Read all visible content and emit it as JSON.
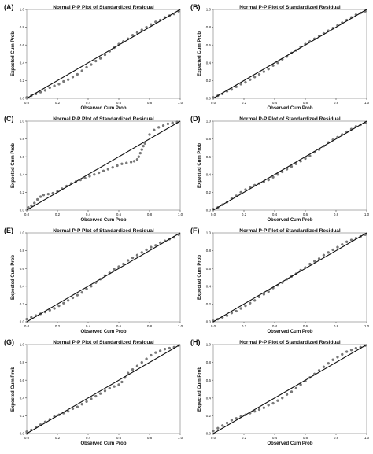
{
  "chart_data": [
    {
      "panel": "(A)",
      "type": "scatter",
      "title": "Normal P-P Plot of Standardized Residual",
      "xlabel": "Observed Cum Prob",
      "ylabel": "Expected Cum Prob",
      "xlim": [
        0,
        1
      ],
      "ylim": [
        0,
        1
      ],
      "xticks": [
        "0.0",
        "0.2",
        "0.4",
        "0.6",
        "0.8",
        "1.0"
      ],
      "yticks": [
        "0.0",
        "0.2",
        "0.4",
        "0.6",
        "0.8",
        "1.0"
      ],
      "reference_line": [
        [
          0,
          0
        ],
        [
          1,
          1
        ]
      ],
      "points": [
        [
          0.0,
          0.01
        ],
        [
          0.03,
          0.03
        ],
        [
          0.06,
          0.05
        ],
        [
          0.09,
          0.07
        ],
        [
          0.12,
          0.09
        ],
        [
          0.15,
          0.12
        ],
        [
          0.18,
          0.14
        ],
        [
          0.21,
          0.16
        ],
        [
          0.24,
          0.19
        ],
        [
          0.27,
          0.21
        ],
        [
          0.3,
          0.24
        ],
        [
          0.33,
          0.27
        ],
        [
          0.36,
          0.31
        ],
        [
          0.39,
          0.35
        ],
        [
          0.42,
          0.38
        ],
        [
          0.45,
          0.42
        ],
        [
          0.48,
          0.45
        ],
        [
          0.51,
          0.49
        ],
        [
          0.54,
          0.53
        ],
        [
          0.57,
          0.57
        ],
        [
          0.6,
          0.61
        ],
        [
          0.63,
          0.64
        ],
        [
          0.66,
          0.67
        ],
        [
          0.69,
          0.71
        ],
        [
          0.72,
          0.74
        ],
        [
          0.75,
          0.77
        ],
        [
          0.78,
          0.8
        ],
        [
          0.81,
          0.83
        ],
        [
          0.84,
          0.86
        ],
        [
          0.87,
          0.88
        ],
        [
          0.9,
          0.91
        ],
        [
          0.93,
          0.93
        ],
        [
          0.96,
          0.95
        ],
        [
          0.99,
          0.98
        ]
      ]
    },
    {
      "panel": "(B)",
      "type": "scatter",
      "title": "Normal P-P Plot of Standardized Residual",
      "xlabel": "Observed Cum Prob",
      "ylabel": "Expected Cum Prob",
      "xlim": [
        0,
        1
      ],
      "ylim": [
        0,
        1
      ],
      "xticks": [
        "0.0",
        "0.2",
        "0.4",
        "0.6",
        "0.8",
        "1.0"
      ],
      "yticks": [
        "0.0",
        "0.2",
        "0.4",
        "0.6",
        "0.8",
        "1.0"
      ],
      "reference_line": [
        [
          0,
          0
        ],
        [
          1,
          1
        ]
      ],
      "points": [
        [
          0.0,
          0.01
        ],
        [
          0.03,
          0.03
        ],
        [
          0.06,
          0.05
        ],
        [
          0.09,
          0.08
        ],
        [
          0.12,
          0.1
        ],
        [
          0.15,
          0.13
        ],
        [
          0.18,
          0.16
        ],
        [
          0.21,
          0.18
        ],
        [
          0.24,
          0.21
        ],
        [
          0.27,
          0.24
        ],
        [
          0.3,
          0.27
        ],
        [
          0.33,
          0.3
        ],
        [
          0.36,
          0.33
        ],
        [
          0.39,
          0.37
        ],
        [
          0.42,
          0.4
        ],
        [
          0.45,
          0.44
        ],
        [
          0.48,
          0.47
        ],
        [
          0.51,
          0.51
        ],
        [
          0.54,
          0.54
        ],
        [
          0.57,
          0.58
        ],
        [
          0.6,
          0.61
        ],
        [
          0.63,
          0.64
        ],
        [
          0.66,
          0.67
        ],
        [
          0.69,
          0.7
        ],
        [
          0.72,
          0.73
        ],
        [
          0.75,
          0.76
        ],
        [
          0.78,
          0.79
        ],
        [
          0.81,
          0.82
        ],
        [
          0.84,
          0.85
        ],
        [
          0.87,
          0.88
        ],
        [
          0.9,
          0.91
        ],
        [
          0.93,
          0.94
        ],
        [
          0.96,
          0.96
        ],
        [
          0.99,
          0.98
        ]
      ]
    },
    {
      "panel": "(C)",
      "type": "scatter",
      "title": "Normal P-P Plot of Standardized Residual",
      "xlabel": "Observed Cum Prob",
      "ylabel": "Expected Cum Prob",
      "xlim": [
        0,
        1
      ],
      "ylim": [
        0,
        1
      ],
      "xticks": [
        "0.0",
        "0.2",
        "0.4",
        "0.6",
        "0.8",
        "1.0"
      ],
      "yticks": [
        "0.0",
        "0.2",
        "0.4",
        "0.6",
        "0.8",
        "1.0"
      ],
      "reference_line": [
        [
          0,
          0
        ],
        [
          1,
          1
        ]
      ],
      "points": [
        [
          0.01,
          0.03
        ],
        [
          0.03,
          0.05
        ],
        [
          0.05,
          0.08
        ],
        [
          0.07,
          0.12
        ],
        [
          0.09,
          0.15
        ],
        [
          0.11,
          0.17
        ],
        [
          0.14,
          0.18
        ],
        [
          0.17,
          0.19
        ],
        [
          0.2,
          0.21
        ],
        [
          0.23,
          0.24
        ],
        [
          0.26,
          0.27
        ],
        [
          0.29,
          0.3
        ],
        [
          0.32,
          0.32
        ],
        [
          0.35,
          0.34
        ],
        [
          0.38,
          0.36
        ],
        [
          0.41,
          0.38
        ],
        [
          0.44,
          0.4
        ],
        [
          0.47,
          0.42
        ],
        [
          0.5,
          0.44
        ],
        [
          0.53,
          0.46
        ],
        [
          0.56,
          0.48
        ],
        [
          0.59,
          0.5
        ],
        [
          0.62,
          0.52
        ],
        [
          0.65,
          0.53
        ],
        [
          0.68,
          0.54
        ],
        [
          0.7,
          0.55
        ],
        [
          0.72,
          0.57
        ],
        [
          0.73,
          0.6
        ],
        [
          0.74,
          0.64
        ],
        [
          0.75,
          0.68
        ],
        [
          0.76,
          0.72
        ],
        [
          0.77,
          0.75
        ],
        [
          0.8,
          0.85
        ],
        [
          0.83,
          0.9
        ],
        [
          0.86,
          0.93
        ],
        [
          0.89,
          0.95
        ],
        [
          0.92,
          0.97
        ],
        [
          0.95,
          0.98
        ],
        [
          0.98,
          0.99
        ]
      ]
    },
    {
      "panel": "(D)",
      "type": "scatter",
      "title": "Normal P-P Plot of Standardized Residual",
      "xlabel": "Observed Cum Prob",
      "ylabel": "Expected Cum Prob",
      "xlim": [
        0,
        1
      ],
      "ylim": [
        0,
        1
      ],
      "xticks": [
        "0.0",
        "0.2",
        "0.4",
        "0.6",
        "0.8",
        "1.0"
      ],
      "yticks": [
        "0.0",
        "0.2",
        "0.4",
        "0.6",
        "0.8",
        "1.0"
      ],
      "reference_line": [
        [
          0,
          0
        ],
        [
          1,
          1
        ]
      ],
      "points": [
        [
          0.0,
          0.01
        ],
        [
          0.03,
          0.03
        ],
        [
          0.06,
          0.06
        ],
        [
          0.09,
          0.09
        ],
        [
          0.12,
          0.13
        ],
        [
          0.15,
          0.16
        ],
        [
          0.18,
          0.2
        ],
        [
          0.21,
          0.23
        ],
        [
          0.24,
          0.26
        ],
        [
          0.27,
          0.28
        ],
        [
          0.3,
          0.3
        ],
        [
          0.33,
          0.32
        ],
        [
          0.36,
          0.34
        ],
        [
          0.39,
          0.37
        ],
        [
          0.42,
          0.4
        ],
        [
          0.45,
          0.43
        ],
        [
          0.48,
          0.46
        ],
        [
          0.51,
          0.49
        ],
        [
          0.54,
          0.52
        ],
        [
          0.57,
          0.55
        ],
        [
          0.6,
          0.58
        ],
        [
          0.63,
          0.61
        ],
        [
          0.66,
          0.65
        ],
        [
          0.69,
          0.68
        ],
        [
          0.72,
          0.72
        ],
        [
          0.75,
          0.76
        ],
        [
          0.78,
          0.79
        ],
        [
          0.81,
          0.82
        ],
        [
          0.84,
          0.85
        ],
        [
          0.87,
          0.88
        ],
        [
          0.9,
          0.91
        ],
        [
          0.93,
          0.94
        ],
        [
          0.96,
          0.96
        ],
        [
          0.99,
          0.98
        ]
      ]
    },
    {
      "panel": "(E)",
      "type": "scatter",
      "title": "Normal P-P Plot of Standardized Residual",
      "xlabel": "Observed Cum Prob",
      "ylabel": "Expected Cum Prob",
      "xlim": [
        0,
        1
      ],
      "ylim": [
        0,
        1
      ],
      "xticks": [
        "0.0",
        "0.2",
        "0.4",
        "0.6",
        "0.8",
        "1.0"
      ],
      "yticks": [
        "0.0",
        "0.2",
        "0.4",
        "0.6",
        "0.8",
        "1.0"
      ],
      "reference_line": [
        [
          0,
          0
        ],
        [
          1,
          1
        ]
      ],
      "points": [
        [
          0.0,
          0.03
        ],
        [
          0.03,
          0.05
        ],
        [
          0.06,
          0.07
        ],
        [
          0.09,
          0.09
        ],
        [
          0.12,
          0.11
        ],
        [
          0.15,
          0.13
        ],
        [
          0.18,
          0.15
        ],
        [
          0.21,
          0.18
        ],
        [
          0.24,
          0.21
        ],
        [
          0.27,
          0.24
        ],
        [
          0.3,
          0.27
        ],
        [
          0.33,
          0.3
        ],
        [
          0.36,
          0.33
        ],
        [
          0.39,
          0.37
        ],
        [
          0.42,
          0.4
        ],
        [
          0.45,
          0.44
        ],
        [
          0.48,
          0.48
        ],
        [
          0.51,
          0.52
        ],
        [
          0.54,
          0.55
        ],
        [
          0.57,
          0.59
        ],
        [
          0.6,
          0.62
        ],
        [
          0.63,
          0.65
        ],
        [
          0.66,
          0.69
        ],
        [
          0.69,
          0.72
        ],
        [
          0.72,
          0.75
        ],
        [
          0.75,
          0.78
        ],
        [
          0.78,
          0.81
        ],
        [
          0.81,
          0.84
        ],
        [
          0.84,
          0.86
        ],
        [
          0.87,
          0.89
        ],
        [
          0.9,
          0.91
        ],
        [
          0.93,
          0.93
        ],
        [
          0.96,
          0.95
        ],
        [
          0.99,
          0.98
        ]
      ]
    },
    {
      "panel": "(F)",
      "type": "scatter",
      "title": "Normal P-P Plot of Standardized Residual",
      "xlabel": "Observed Cum Prob",
      "ylabel": "Expected Cum Prob",
      "xlim": [
        0,
        1
      ],
      "ylim": [
        0,
        1
      ],
      "xticks": [
        "0.0",
        "0.2",
        "0.4",
        "0.6",
        "0.8",
        "1.0"
      ],
      "yticks": [
        "0.0",
        "0.2",
        "0.4",
        "0.6",
        "0.8",
        "1.0"
      ],
      "reference_line": [
        [
          0,
          0
        ],
        [
          1,
          1
        ]
      ],
      "points": [
        [
          0.0,
          0.01
        ],
        [
          0.03,
          0.03
        ],
        [
          0.06,
          0.05
        ],
        [
          0.09,
          0.07
        ],
        [
          0.12,
          0.1
        ],
        [
          0.15,
          0.12
        ],
        [
          0.18,
          0.15
        ],
        [
          0.21,
          0.18
        ],
        [
          0.24,
          0.21
        ],
        [
          0.27,
          0.24
        ],
        [
          0.3,
          0.28
        ],
        [
          0.33,
          0.31
        ],
        [
          0.36,
          0.34
        ],
        [
          0.39,
          0.38
        ],
        [
          0.42,
          0.41
        ],
        [
          0.45,
          0.44
        ],
        [
          0.48,
          0.48
        ],
        [
          0.51,
          0.51
        ],
        [
          0.54,
          0.54
        ],
        [
          0.57,
          0.58
        ],
        [
          0.6,
          0.61
        ],
        [
          0.63,
          0.65
        ],
        [
          0.66,
          0.68
        ],
        [
          0.69,
          0.71
        ],
        [
          0.72,
          0.75
        ],
        [
          0.75,
          0.78
        ],
        [
          0.78,
          0.81
        ],
        [
          0.81,
          0.84
        ],
        [
          0.84,
          0.87
        ],
        [
          0.87,
          0.9
        ],
        [
          0.9,
          0.92
        ],
        [
          0.93,
          0.94
        ],
        [
          0.96,
          0.96
        ],
        [
          0.99,
          0.98
        ]
      ]
    },
    {
      "panel": "(G)",
      "type": "scatter",
      "title": "Normal P-P Plot of Standardized Residual",
      "xlabel": "Observed Cum Prob",
      "ylabel": "Expected Cum Prob",
      "xlim": [
        0,
        1
      ],
      "ylim": [
        0,
        1
      ],
      "xticks": [
        "0.0",
        "0.2",
        "0.4",
        "0.6",
        "0.8",
        "1.0"
      ],
      "yticks": [
        "0.0",
        "0.2",
        "0.4",
        "0.6",
        "0.8",
        "1.0"
      ],
      "reference_line": [
        [
          0,
          0
        ],
        [
          1,
          1
        ]
      ],
      "points": [
        [
          0.0,
          0.02
        ],
        [
          0.03,
          0.04
        ],
        [
          0.06,
          0.07
        ],
        [
          0.09,
          0.1
        ],
        [
          0.12,
          0.13
        ],
        [
          0.15,
          0.16
        ],
        [
          0.18,
          0.19
        ],
        [
          0.21,
          0.21
        ],
        [
          0.24,
          0.23
        ],
        [
          0.27,
          0.25
        ],
        [
          0.3,
          0.28
        ],
        [
          0.33,
          0.3
        ],
        [
          0.36,
          0.33
        ],
        [
          0.39,
          0.36
        ],
        [
          0.42,
          0.39
        ],
        [
          0.45,
          0.42
        ],
        [
          0.48,
          0.45
        ],
        [
          0.51,
          0.48
        ],
        [
          0.54,
          0.51
        ],
        [
          0.57,
          0.53
        ],
        [
          0.6,
          0.55
        ],
        [
          0.62,
          0.58
        ],
        [
          0.64,
          0.63
        ],
        [
          0.66,
          0.68
        ],
        [
          0.69,
          0.72
        ],
        [
          0.72,
          0.76
        ],
        [
          0.75,
          0.8
        ],
        [
          0.78,
          0.84
        ],
        [
          0.81,
          0.88
        ],
        [
          0.84,
          0.91
        ],
        [
          0.87,
          0.93
        ],
        [
          0.9,
          0.95
        ],
        [
          0.93,
          0.96
        ],
        [
          0.96,
          0.97
        ],
        [
          0.99,
          0.99
        ]
      ]
    },
    {
      "panel": "(H)",
      "type": "scatter",
      "title": "Normal P-P Plot of Standardized Residual",
      "xlabel": "Observed Cum Prob",
      "ylabel": "Expected Cum Prob",
      "xlim": [
        0,
        1
      ],
      "ylim": [
        0,
        1
      ],
      "xticks": [
        "0.0",
        "0.2",
        "0.4",
        "0.6",
        "0.8",
        "1.0"
      ],
      "yticks": [
        "0.0",
        "0.2",
        "0.4",
        "0.6",
        "0.8",
        "1.0"
      ],
      "reference_line": [
        [
          0,
          0
        ],
        [
          1,
          1
        ]
      ],
      "points": [
        [
          0.0,
          0.03
        ],
        [
          0.03,
          0.06
        ],
        [
          0.06,
          0.09
        ],
        [
          0.09,
          0.12
        ],
        [
          0.12,
          0.15
        ],
        [
          0.15,
          0.17
        ],
        [
          0.18,
          0.19
        ],
        [
          0.21,
          0.21
        ],
        [
          0.24,
          0.23
        ],
        [
          0.27,
          0.25
        ],
        [
          0.3,
          0.27
        ],
        [
          0.33,
          0.29
        ],
        [
          0.36,
          0.32
        ],
        [
          0.39,
          0.34
        ],
        [
          0.42,
          0.37
        ],
        [
          0.45,
          0.4
        ],
        [
          0.48,
          0.44
        ],
        [
          0.51,
          0.47
        ],
        [
          0.54,
          0.51
        ],
        [
          0.57,
          0.55
        ],
        [
          0.6,
          0.59
        ],
        [
          0.63,
          0.63
        ],
        [
          0.66,
          0.67
        ],
        [
          0.69,
          0.71
        ],
        [
          0.72,
          0.75
        ],
        [
          0.75,
          0.79
        ],
        [
          0.78,
          0.83
        ],
        [
          0.81,
          0.86
        ],
        [
          0.84,
          0.89
        ],
        [
          0.87,
          0.92
        ],
        [
          0.9,
          0.94
        ],
        [
          0.93,
          0.96
        ],
        [
          0.96,
          0.97
        ],
        [
          0.99,
          0.99
        ]
      ]
    }
  ],
  "style": {
    "marker_color": "#7a7a7a",
    "line_color": "#111111",
    "frame_color": "#9a9a9a"
  }
}
